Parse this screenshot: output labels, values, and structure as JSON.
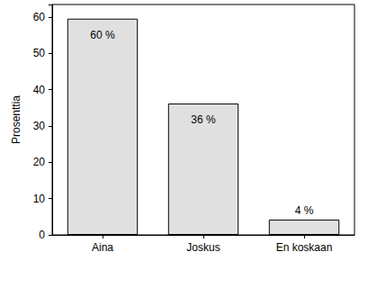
{
  "chart_data": {
    "type": "bar",
    "y_label": "Prosenttia",
    "categories": [
      "Aina",
      "Joskus",
      "En koskaan"
    ],
    "values": [
      59.6,
      36.2,
      4.2
    ],
    "value_labels": [
      "60 %",
      "36 %",
      "4 %"
    ],
    "color": "#e0e0e0",
    "ylim": [
      0,
      63.5
    ],
    "yticks": [
      0,
      10,
      20,
      30,
      40,
      50,
      60
    ],
    "grid": false,
    "data_labels": true
  }
}
